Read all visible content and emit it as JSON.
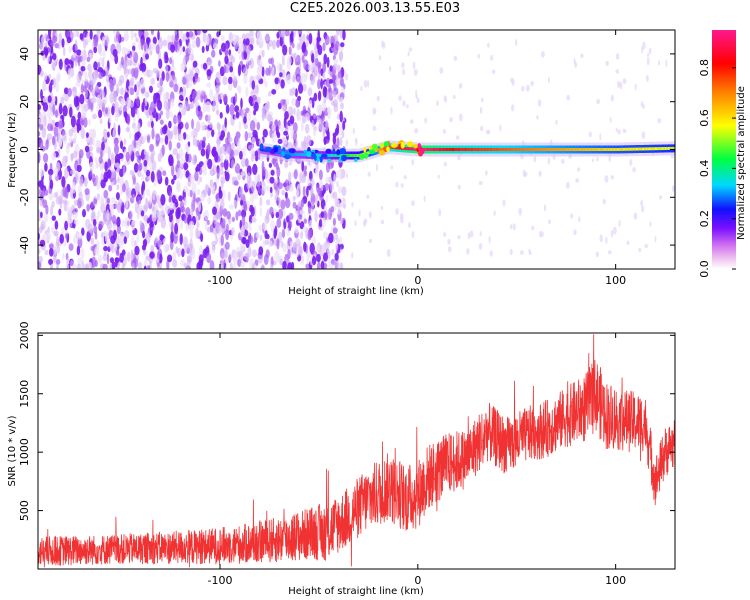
{
  "title": "C2E5.2026.003.13.55.E03",
  "colors": {
    "snr_line": "#f03232",
    "background_dot": "#7a1ef0",
    "ridge_peak": "#e8201e"
  },
  "chart_data": [
    {
      "type": "heatmap",
      "xlabel": "Height of straight line (km)",
      "ylabel": "Frequency (Hz)",
      "xlim": [
        -192,
        130
      ],
      "ylim": [
        -50,
        50
      ],
      "xticks": [
        {
          "v": -100,
          "label": "-100"
        },
        {
          "v": 0,
          "label": "0"
        },
        {
          "v": 100,
          "label": "100"
        }
      ],
      "yticks": [
        {
          "v": -40,
          "label": "-40"
        },
        {
          "v": -20,
          "label": "-20"
        },
        {
          "v": 0,
          "label": "0"
        },
        {
          "v": 20,
          "label": "20"
        },
        {
          "v": 40,
          "label": "40"
        }
      ],
      "colorbar": {
        "label": "Normalized spectral amplitude",
        "range": [
          0,
          0.95
        ],
        "ticks": [
          {
            "v": 0.0,
            "label": "0.0"
          },
          {
            "v": 0.2,
            "label": "0.2"
          },
          {
            "v": 0.4,
            "label": "0.4"
          },
          {
            "v": 0.6,
            "label": "0.6"
          },
          {
            "v": 0.8,
            "label": "0.8"
          }
        ]
      },
      "noise_region_x": [
        -192,
        -43
      ],
      "ridge": [
        {
          "x": -80,
          "f": 0.0,
          "amp": 0.25
        },
        {
          "x": -65,
          "f": -2.0,
          "amp": 0.3
        },
        {
          "x": -45,
          "f": -2.5,
          "amp": 0.35
        },
        {
          "x": -30,
          "f": -2.5,
          "amp": 0.5
        },
        {
          "x": -15,
          "f": 1.0,
          "amp": 0.75
        },
        {
          "x": -8,
          "f": 0.5,
          "amp": 0.85
        },
        {
          "x": 0,
          "f": 0.0,
          "amp": 0.95
        },
        {
          "x": 20,
          "f": 0.0,
          "amp": 0.8
        },
        {
          "x": 60,
          "f": 0.0,
          "amp": 0.7
        },
        {
          "x": 100,
          "f": 0.0,
          "amp": 0.6
        },
        {
          "x": 130,
          "f": 0.5,
          "amp": 0.55
        }
      ]
    },
    {
      "type": "line",
      "xlabel": "Height of straight line (km)",
      "ylabel": "SNR (10 * v/v)",
      "xlim": [
        -192,
        130
      ],
      "ylim": [
        0,
        2020
      ],
      "xticks": [
        {
          "v": -100,
          "label": "-100"
        },
        {
          "v": 0,
          "label": "0"
        },
        {
          "v": 100,
          "label": "100"
        }
      ],
      "yticks": [
        {
          "v": 500,
          "label": "500"
        },
        {
          "v": 1000,
          "label": "1000"
        },
        {
          "v": 1500,
          "label": "1500"
        },
        {
          "v": 2000,
          "label": "2000"
        }
      ],
      "series": [
        {
          "name": "SNR",
          "x": [
            -192,
            -170,
            -150,
            -130,
            -110,
            -90,
            -70,
            -55,
            -45,
            -35,
            -25,
            -15,
            -5,
            0,
            5,
            15,
            25,
            35,
            45,
            55,
            65,
            75,
            85,
            90,
            95,
            105,
            115,
            120,
            125,
            130
          ],
          "mean": [
            150,
            160,
            170,
            180,
            190,
            210,
            250,
            300,
            330,
            450,
            600,
            700,
            600,
            640,
            780,
            900,
            950,
            1180,
            1050,
            1150,
            1200,
            1300,
            1380,
            1500,
            1320,
            1270,
            1250,
            750,
            1000,
            1080
          ],
          "spread": [
            130,
            130,
            130,
            140,
            150,
            170,
            200,
            230,
            260,
            260,
            280,
            300,
            300,
            300,
            290,
            270,
            260,
            260,
            250,
            240,
            250,
            260,
            300,
            330,
            300,
            270,
            250,
            220,
            220,
            220
          ]
        }
      ]
    }
  ]
}
